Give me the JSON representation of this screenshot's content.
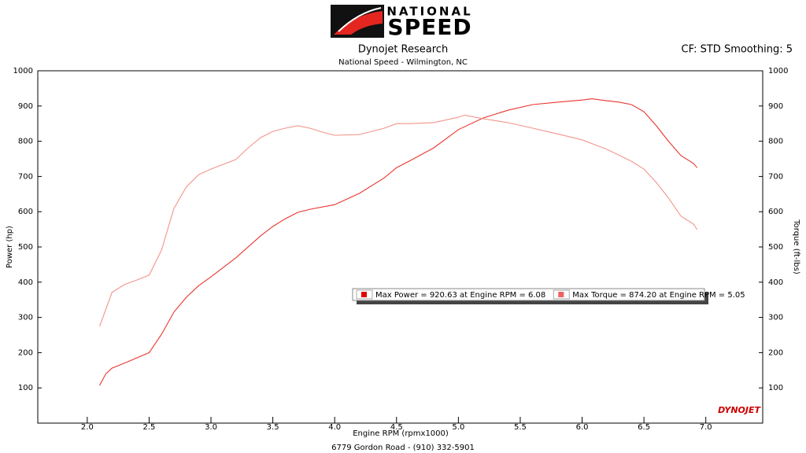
{
  "brand": {
    "top": "NATIONAL",
    "bottom": "SPEED",
    "watermark": "DYNOJET"
  },
  "chart_data": {
    "type": "line",
    "title": "Dynojet Research",
    "subtitle": "National Speed - Wilmington, NC",
    "settings_label": "CF: STD Smoothing: 5",
    "footer": "6779 Gordon Road - (910) 332-5901",
    "x_label": "Engine RPM (rpmx1000)",
    "y_label": "Power (hp)",
    "y2_label": "Torque (ft-lbs)",
    "xlim": [
      1.6,
      7.46
    ],
    "xticks": [
      {
        "value": 2,
        "label": "2.0"
      },
      {
        "value": 2.5,
        "label": "2.5"
      },
      {
        "value": 3,
        "label": "3.0"
      },
      {
        "value": 3.5,
        "label": "3.5"
      },
      {
        "value": 4,
        "label": "4.0"
      },
      {
        "value": 4.5,
        "label": "4.5"
      },
      {
        "value": 5,
        "label": "5.0"
      },
      {
        "value": 5.5,
        "label": "5.5"
      },
      {
        "value": 6,
        "label": "6.0"
      },
      {
        "value": 6.5,
        "label": "6.5"
      },
      {
        "value": 7,
        "label": "7.0"
      }
    ],
    "ylim": [
      0,
      1000
    ],
    "yticks": [
      100,
      200,
      300,
      400,
      500,
      600,
      700,
      800,
      900,
      1000
    ],
    "y2lim": [
      0,
      1000
    ],
    "y2ticks": [
      100,
      200,
      300,
      400,
      500,
      600,
      700,
      800,
      900,
      1000
    ],
    "grid": false,
    "legend": "center",
    "series": [
      {
        "name": "Max Power = 920.63 at Engine RPM = 6.08",
        "color": "#e8352e",
        "swatch": "#e00000",
        "x": [
          2.1,
          2.15,
          2.2,
          2.3,
          2.4,
          2.5,
          2.6,
          2.7,
          2.8,
          2.9,
          3.0,
          3.2,
          3.4,
          3.5,
          3.6,
          3.7,
          3.8,
          4.0,
          4.2,
          4.4,
          4.5,
          4.6,
          4.8,
          5.0,
          5.2,
          5.4,
          5.6,
          5.8,
          6.0,
          6.08,
          6.2,
          6.3,
          6.4,
          6.5,
          6.6,
          6.7,
          6.8,
          6.9,
          6.93
        ],
        "values": [
          107,
          140,
          156,
          170,
          185,
          200,
          252,
          315,
          357,
          390,
          415,
          469,
          531,
          558,
          580,
          598,
          607,
          620,
          652,
          696,
          725,
          743,
          781,
          833,
          866,
          888,
          904,
          911,
          917,
          920.63,
          915,
          911,
          904,
          884,
          844,
          799,
          759,
          737,
          725
        ]
      },
      {
        "name": "Max Torque = 874.20 at Engine RPM = 5.05",
        "color": "#f3948a",
        "swatch": "#f06262",
        "axis": "y2",
        "x": [
          2.1,
          2.2,
          2.3,
          2.4,
          2.5,
          2.6,
          2.7,
          2.8,
          2.9,
          3.0,
          3.2,
          3.3,
          3.4,
          3.5,
          3.6,
          3.7,
          3.8,
          3.9,
          4.0,
          4.2,
          4.4,
          4.5,
          4.6,
          4.8,
          5.0,
          5.05,
          5.2,
          5.4,
          5.6,
          5.8,
          6.0,
          6.2,
          6.4,
          6.5,
          6.6,
          6.7,
          6.8,
          6.9,
          6.93
        ],
        "values": [
          275,
          371,
          393,
          406,
          420,
          491,
          609,
          670,
          705,
          721,
          748,
          781,
          810,
          828,
          837,
          844,
          837,
          826,
          817,
          819,
          837,
          850,
          850,
          853,
          868,
          874.2,
          864,
          853,
          837,
          821,
          804,
          777,
          743,
          721,
          683,
          638,
          587,
          565,
          549
        ]
      }
    ]
  }
}
